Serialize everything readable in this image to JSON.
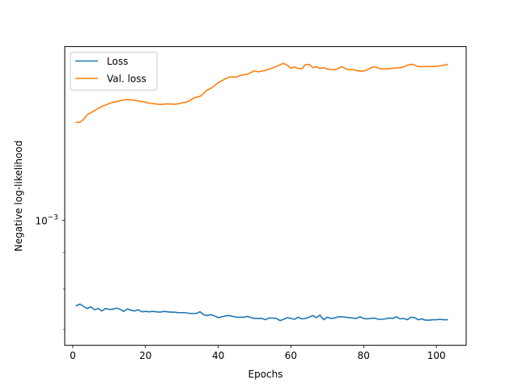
{
  "chart_data": {
    "type": "line",
    "xlabel": "Epochs",
    "ylabel": "Negative log-likelihood",
    "xlim": [
      -2.2,
      108.2
    ],
    "yscale": "log",
    "ylim": [
      0.000665,
      0.001765
    ],
    "xticks": [
      0,
      20,
      40,
      60,
      80,
      100
    ],
    "xtick_labels": [
      "0",
      "20",
      "40",
      "60",
      "80",
      "100"
    ],
    "yticks": [
      0.001
    ],
    "ytick_base": "10",
    "ytick_exp": "−3",
    "legend_position": "upper-left",
    "grid": false,
    "series": [
      {
        "name": "Loss",
        "color": "#1f77b4",
        "x": [
          1,
          2,
          3,
          4,
          5,
          6,
          7,
          8,
          9,
          10,
          11,
          12,
          13,
          14,
          15,
          16,
          17,
          18,
          19,
          20,
          21,
          22,
          23,
          24,
          25,
          26,
          27,
          28,
          29,
          30,
          31,
          32,
          33,
          34,
          35,
          36,
          37,
          38,
          39,
          40,
          41,
          42,
          43,
          44,
          45,
          46,
          47,
          48,
          49,
          50,
          51,
          52,
          53,
          54,
          55,
          56,
          57,
          58,
          59,
          60,
          61,
          62,
          63,
          64,
          65,
          66,
          67,
          68,
          69,
          70,
          71,
          72,
          73,
          74,
          75,
          76,
          77,
          78,
          79,
          80,
          81,
          82,
          83,
          84,
          85,
          86,
          87,
          88,
          89,
          90,
          91,
          92,
          93,
          94,
          95,
          96,
          97,
          98,
          99,
          100,
          101,
          102,
          103
        ],
        "y": [
          0.000757,
          0.000761,
          0.000755,
          0.00075,
          0.000754,
          0.000747,
          0.00075,
          0.000744,
          0.00075,
          0.000748,
          0.000748,
          0.000751,
          0.000748,
          0.000743,
          0.000749,
          0.000746,
          0.000744,
          0.000747,
          0.000742,
          0.000743,
          0.000742,
          0.000743,
          0.000742,
          0.000741,
          0.000743,
          0.000742,
          0.000741,
          0.000741,
          0.00074,
          0.00074,
          0.00074,
          0.000738,
          0.000738,
          0.000738,
          0.000742,
          0.000735,
          0.000733,
          0.000735,
          0.000732,
          0.000728,
          0.00073,
          0.000732,
          0.000733,
          0.000731,
          0.000729,
          0.000729,
          0.000729,
          0.000731,
          0.000728,
          0.000726,
          0.000726,
          0.000726,
          0.000723,
          0.000727,
          0.000727,
          0.000726,
          0.000721,
          0.000724,
          0.000728,
          0.000726,
          0.000724,
          0.000729,
          0.000725,
          0.000726,
          0.000729,
          0.000733,
          0.000728,
          0.000734,
          0.000723,
          0.000729,
          0.000726,
          0.000727,
          0.00073,
          0.00073,
          0.000729,
          0.000728,
          0.000727,
          0.000726,
          0.00073,
          0.000726,
          0.000725,
          0.000726,
          0.000727,
          0.000724,
          0.000724,
          0.000725,
          0.000727,
          0.000726,
          0.00073,
          0.000725,
          0.000726,
          0.000723,
          0.000729,
          0.000728,
          0.000723,
          0.000725,
          0.000722,
          0.000722,
          0.000723,
          0.000723,
          0.000724,
          0.000723,
          0.000723
        ]
      },
      {
        "name": "Val. loss",
        "color": "#ff7f0e",
        "x": [
          1,
          2,
          3,
          4,
          5,
          6,
          7,
          8,
          9,
          10,
          11,
          12,
          13,
          14,
          15,
          16,
          17,
          18,
          19,
          20,
          21,
          22,
          23,
          24,
          25,
          26,
          27,
          28,
          29,
          30,
          31,
          32,
          33,
          34,
          35,
          36,
          37,
          38,
          39,
          40,
          41,
          42,
          43,
          44,
          45,
          46,
          47,
          48,
          49,
          50,
          51,
          52,
          53,
          54,
          55,
          56,
          57,
          58,
          59,
          60,
          61,
          62,
          63,
          64,
          65,
          66,
          67,
          68,
          69,
          70,
          71,
          72,
          73,
          74,
          75,
          76,
          77,
          78,
          79,
          80,
          81,
          82,
          83,
          84,
          85,
          86,
          87,
          88,
          89,
          90,
          91,
          92,
          93,
          94,
          95,
          96,
          97,
          98,
          99,
          100,
          101,
          102,
          103
        ],
        "y": [
          0.001378,
          0.001378,
          0.001392,
          0.001413,
          0.001422,
          0.001432,
          0.001442,
          0.001451,
          0.001458,
          0.001465,
          0.001471,
          0.001474,
          0.001479,
          0.001482,
          0.001484,
          0.001483,
          0.001481,
          0.001478,
          0.001475,
          0.001472,
          0.001467,
          0.001465,
          0.001463,
          0.001461,
          0.001462,
          0.001464,
          0.001463,
          0.001462,
          0.001464,
          0.001469,
          0.001471,
          0.001477,
          0.00149,
          0.001496,
          0.0015,
          0.001515,
          0.001532,
          0.00154,
          0.001553,
          0.001568,
          0.001579,
          0.001589,
          0.001597,
          0.001599,
          0.001597,
          0.001606,
          0.00161,
          0.001612,
          0.001622,
          0.00163,
          0.001625,
          0.001629,
          0.001633,
          0.00164,
          0.001646,
          0.001654,
          0.001663,
          0.001671,
          0.00166,
          0.001645,
          0.001651,
          0.001643,
          0.001642,
          0.001664,
          0.001665,
          0.001648,
          0.001652,
          0.001643,
          0.001647,
          0.00164,
          0.001638,
          0.001637,
          0.001643,
          0.001653,
          0.001642,
          0.001636,
          0.001637,
          0.001633,
          0.001629,
          0.001629,
          0.001636,
          0.001647,
          0.001652,
          0.001645,
          0.001641,
          0.001641,
          0.001641,
          0.001645,
          0.001646,
          0.001647,
          0.001651,
          0.00166,
          0.001666,
          0.001662,
          0.001653,
          0.001653,
          0.001654,
          0.001653,
          0.001654,
          0.001655,
          0.001657,
          0.001661,
          0.001665
        ]
      }
    ]
  }
}
